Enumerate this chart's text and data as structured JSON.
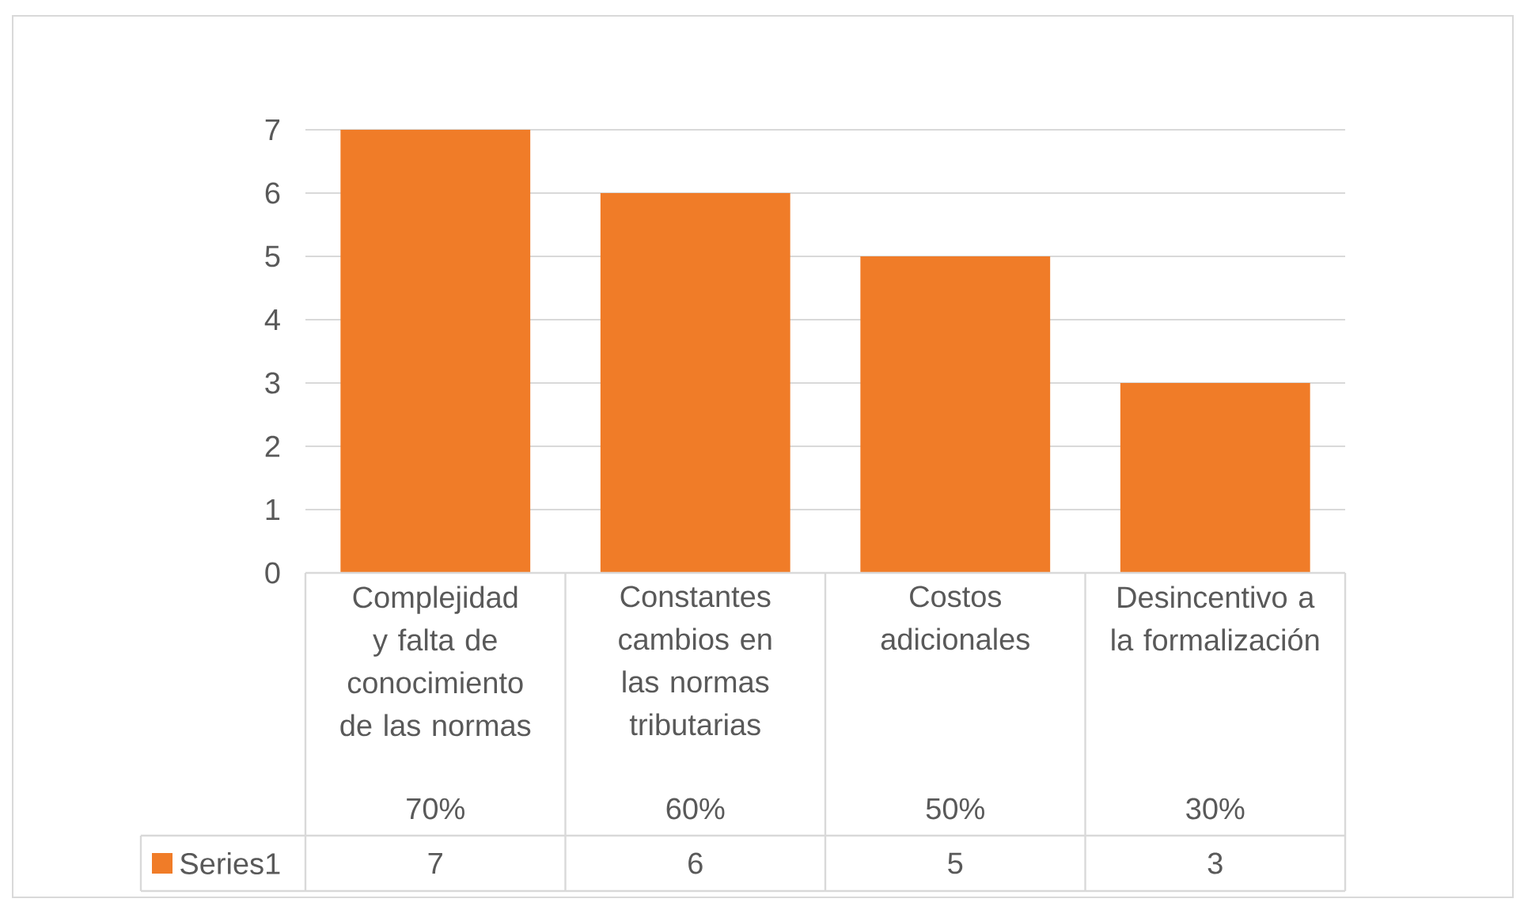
{
  "chart_data": {
    "type": "bar",
    "categories": [
      "Complejidad y falta de conocimiento de las normas",
      "Constantes cambios en las normas tributarias",
      "Costos adicionales",
      "Desincentivo a la formalización"
    ],
    "series": [
      {
        "name": "Series1",
        "color": "#f07c28",
        "values": [
          7,
          6,
          5,
          3
        ]
      }
    ],
    "ylim": [
      0,
      7
    ],
    "yticks": [
      0,
      1,
      2,
      3,
      4,
      5,
      6,
      7
    ],
    "grid": "y",
    "data_labels": true,
    "annotations": [
      "70%",
      "60%",
      "50%",
      "30%"
    ]
  }
}
